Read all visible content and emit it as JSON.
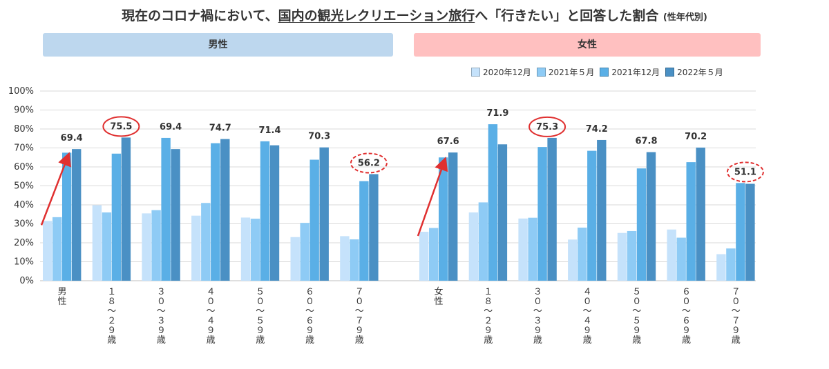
{
  "title": {
    "pre": "現在のコロナ禍において、",
    "underlined": "国内の観光レクリエーション旅行",
    "post": "へ「行きたい」と回答した割合",
    "sub": "(性年代別)"
  },
  "panels": {
    "male": "男性",
    "female": "女性"
  },
  "colors": {
    "panel_male": "#bdd7ee",
    "panel_female": "#ffc0c0",
    "series": [
      "#c5e2fb",
      "#8ecbf5",
      "#5aafe6",
      "#4a90c4"
    ],
    "highlight": "#e03030",
    "gridline": "#d9d9d9"
  },
  "chart_data": {
    "type": "bar",
    "ylim": [
      0,
      100
    ],
    "yticks": [
      "0%",
      "10%",
      "20%",
      "30%",
      "40%",
      "50%",
      "60%",
      "70%",
      "80%",
      "90%",
      "100%"
    ],
    "series_names": [
      "2020年12月",
      "2021年５月",
      "2021年12月",
      "2022年５月"
    ],
    "groups": [
      {
        "label": "男性",
        "values": [
          31.5,
          33.5,
          67.5,
          69.4
        ]
      },
      {
        "label": "１８～２９歳",
        "values": [
          39.8,
          36.0,
          67.0,
          75.5
        ]
      },
      {
        "label": "３０～３９歳",
        "values": [
          35.5,
          37.2,
          75.3,
          69.4
        ]
      },
      {
        "label": "４０～４９歳",
        "values": [
          34.3,
          41.0,
          72.5,
          74.7
        ]
      },
      {
        "label": "５０～５９歳",
        "values": [
          33.3,
          32.7,
          73.5,
          71.4
        ]
      },
      {
        "label": "６０～６９歳",
        "values": [
          23.0,
          30.5,
          63.8,
          70.3
        ]
      },
      {
        "label": "７０～７９歳",
        "values": [
          23.5,
          21.8,
          52.5,
          56.2
        ]
      },
      {
        "label": "女性",
        "values": [
          25.8,
          27.8,
          65.0,
          67.6
        ]
      },
      {
        "label": "１８～２９歳",
        "values": [
          36.0,
          41.3,
          82.5,
          71.9
        ]
      },
      {
        "label": "３０～３９歳",
        "values": [
          32.8,
          33.2,
          70.5,
          75.3
        ]
      },
      {
        "label": "４０～４９歳",
        "values": [
          21.7,
          28.0,
          68.5,
          74.2
        ]
      },
      {
        "label": "５０～５９歳",
        "values": [
          25.2,
          26.2,
          59.2,
          67.8
        ]
      },
      {
        "label": "６０～６９歳",
        "values": [
          27.0,
          22.7,
          62.5,
          70.2
        ]
      },
      {
        "label": "７０～７９歳",
        "values": [
          14.0,
          17.0,
          51.5,
          51.1
        ]
      }
    ],
    "data_labels": [
      "69.4",
      "75.5",
      "69.4",
      "74.7",
      "71.4",
      "70.3",
      "56.2",
      "67.6",
      "71.9",
      "75.3",
      "74.2",
      "67.8",
      "70.2",
      "51.1"
    ],
    "highlights": [
      {
        "group": 1,
        "style": "solid"
      },
      {
        "group": 6,
        "style": "dashed"
      },
      {
        "group": 9,
        "style": "solid"
      },
      {
        "group": 13,
        "style": "dashed"
      }
    ],
    "trend_arrows": [
      0,
      7
    ],
    "legend_position": "top-right",
    "grid": true
  }
}
